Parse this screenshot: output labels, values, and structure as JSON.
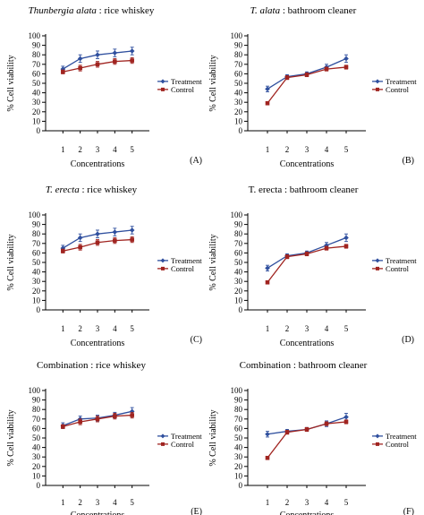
{
  "figure": {
    "panels": [
      {
        "title_italic": "Thunbergia alata",
        "title_rest": " : rice whiskey",
        "panel_label": "(A)"
      },
      {
        "title_italic": "T. alata",
        "title_rest": " : bathroom cleaner",
        "panel_label": "(B)"
      },
      {
        "title_italic": "T. erecta",
        "title_rest": " : rice whiskey",
        "panel_label": "(C)"
      },
      {
        "title_italic": "",
        "title_rest": "T. erecta : bathroom cleaner",
        "panel_label": "(D)"
      },
      {
        "title_italic": "",
        "title_rest": "Combination : rice whiskey",
        "panel_label": "(E)"
      },
      {
        "title_italic": "",
        "title_rest": "Combination : bathroom cleaner",
        "panel_label": "(F)"
      }
    ],
    "colors": {
      "treatment": "#2f4f9e",
      "control": "#a02420",
      "axis": "#000000"
    }
  },
  "chart_data": [
    {
      "type": "line",
      "title": "Thunbergia alata : rice whiskey",
      "xlabel": "Concentrations",
      "ylabel": "% Cell viability",
      "categories": [
        "1",
        "2",
        "3",
        "4",
        "5"
      ],
      "ylim": [
        0,
        100
      ],
      "yticks": [
        "0",
        "10",
        "20",
        "30",
        "40",
        "50",
        "60",
        "70",
        "80",
        "90",
        "100"
      ],
      "legend_position": "right",
      "series": [
        {
          "name": "Treatment",
          "values": [
            65,
            76,
            80,
            82,
            84
          ],
          "errors": [
            3,
            4,
            4,
            4,
            4
          ]
        },
        {
          "name": "Control",
          "values": [
            62,
            66,
            70,
            73,
            74
          ],
          "errors": [
            2,
            3,
            3,
            3,
            3
          ]
        }
      ]
    },
    {
      "type": "line",
      "title": "T. alata : bathroom cleaner",
      "xlabel": "Concentrations",
      "ylabel": "% Cell viability",
      "categories": [
        "1",
        "2",
        "3",
        "4",
        "5"
      ],
      "ylim": [
        0,
        100
      ],
      "yticks": [
        "0",
        "10",
        "20",
        "30",
        "40",
        "50",
        "60",
        "70",
        "80",
        "90",
        "100"
      ],
      "legend_position": "right",
      "series": [
        {
          "name": "Treatment",
          "values": [
            44,
            57,
            60,
            67,
            76
          ],
          "errors": [
            3,
            2,
            2,
            3,
            4
          ]
        },
        {
          "name": "Control",
          "values": [
            29,
            56,
            59,
            65,
            67
          ],
          "errors": [
            1,
            2,
            2,
            2,
            2
          ]
        }
      ]
    },
    {
      "type": "line",
      "title": "T. erecta : rice whiskey",
      "xlabel": "Concentrations",
      "ylabel": "% Cell viability",
      "categories": [
        "1",
        "2",
        "3",
        "4",
        "5"
      ],
      "ylim": [
        0,
        100
      ],
      "yticks": [
        "0",
        "10",
        "20",
        "30",
        "40",
        "50",
        "60",
        "70",
        "80",
        "90",
        "100"
      ],
      "legend_position": "right",
      "series": [
        {
          "name": "Treatment",
          "values": [
            65,
            76,
            80,
            82,
            84
          ],
          "errors": [
            3,
            4,
            4,
            4,
            4
          ]
        },
        {
          "name": "Control",
          "values": [
            62,
            66,
            71,
            73,
            74
          ],
          "errors": [
            2,
            3,
            3,
            3,
            3
          ]
        }
      ]
    },
    {
      "type": "line",
      "title": "T. erecta : bathroom cleaner",
      "xlabel": "Concentrations",
      "ylabel": "% Cell viability",
      "categories": [
        "1",
        "2",
        "3",
        "4",
        "5"
      ],
      "ylim": [
        0,
        100
      ],
      "yticks": [
        "0",
        "10",
        "20",
        "30",
        "40",
        "50",
        "60",
        "70",
        "80",
        "90",
        "100"
      ],
      "legend_position": "right",
      "series": [
        {
          "name": "Treatment",
          "values": [
            44,
            57,
            60,
            68,
            76
          ],
          "errors": [
            3,
            2,
            2,
            3,
            4
          ]
        },
        {
          "name": "Control",
          "values": [
            29,
            56,
            59,
            65,
            67
          ],
          "errors": [
            1,
            2,
            2,
            2,
            2
          ]
        }
      ]
    },
    {
      "type": "line",
      "title": "Combination : rice whiskey",
      "xlabel": "Concentrations",
      "ylabel": "% Cell viability",
      "categories": [
        "1",
        "2",
        "3",
        "4",
        "5"
      ],
      "ylim": [
        0,
        100
      ],
      "yticks": [
        "0",
        "10",
        "20",
        "30",
        "40",
        "50",
        "60",
        "70",
        "80",
        "90",
        "100"
      ],
      "legend_position": "right",
      "series": [
        {
          "name": "Treatment",
          "values": [
            63,
            70,
            71,
            74,
            78
          ],
          "errors": [
            3,
            3,
            3,
            3,
            4
          ]
        },
        {
          "name": "Control",
          "values": [
            62,
            67,
            70,
            73,
            74
          ],
          "errors": [
            2,
            3,
            3,
            3,
            3
          ]
        }
      ]
    },
    {
      "type": "line",
      "title": "Combination : bathroom cleaner",
      "xlabel": "Concentrations",
      "ylabel": "% Cell viability",
      "categories": [
        "1",
        "2",
        "3",
        "4",
        "5"
      ],
      "ylim": [
        0,
        100
      ],
      "yticks": [
        "0",
        "10",
        "20",
        "30",
        "40",
        "50",
        "60",
        "70",
        "80",
        "90",
        "100"
      ],
      "legend_position": "right",
      "series": [
        {
          "name": "Treatment",
          "values": [
            54,
            57,
            59,
            65,
            72
          ],
          "errors": [
            3,
            2,
            2,
            3,
            4
          ]
        },
        {
          "name": "Control",
          "values": [
            29,
            56,
            59,
            65,
            67
          ],
          "errors": [
            1,
            2,
            2,
            2,
            2
          ]
        }
      ]
    }
  ]
}
